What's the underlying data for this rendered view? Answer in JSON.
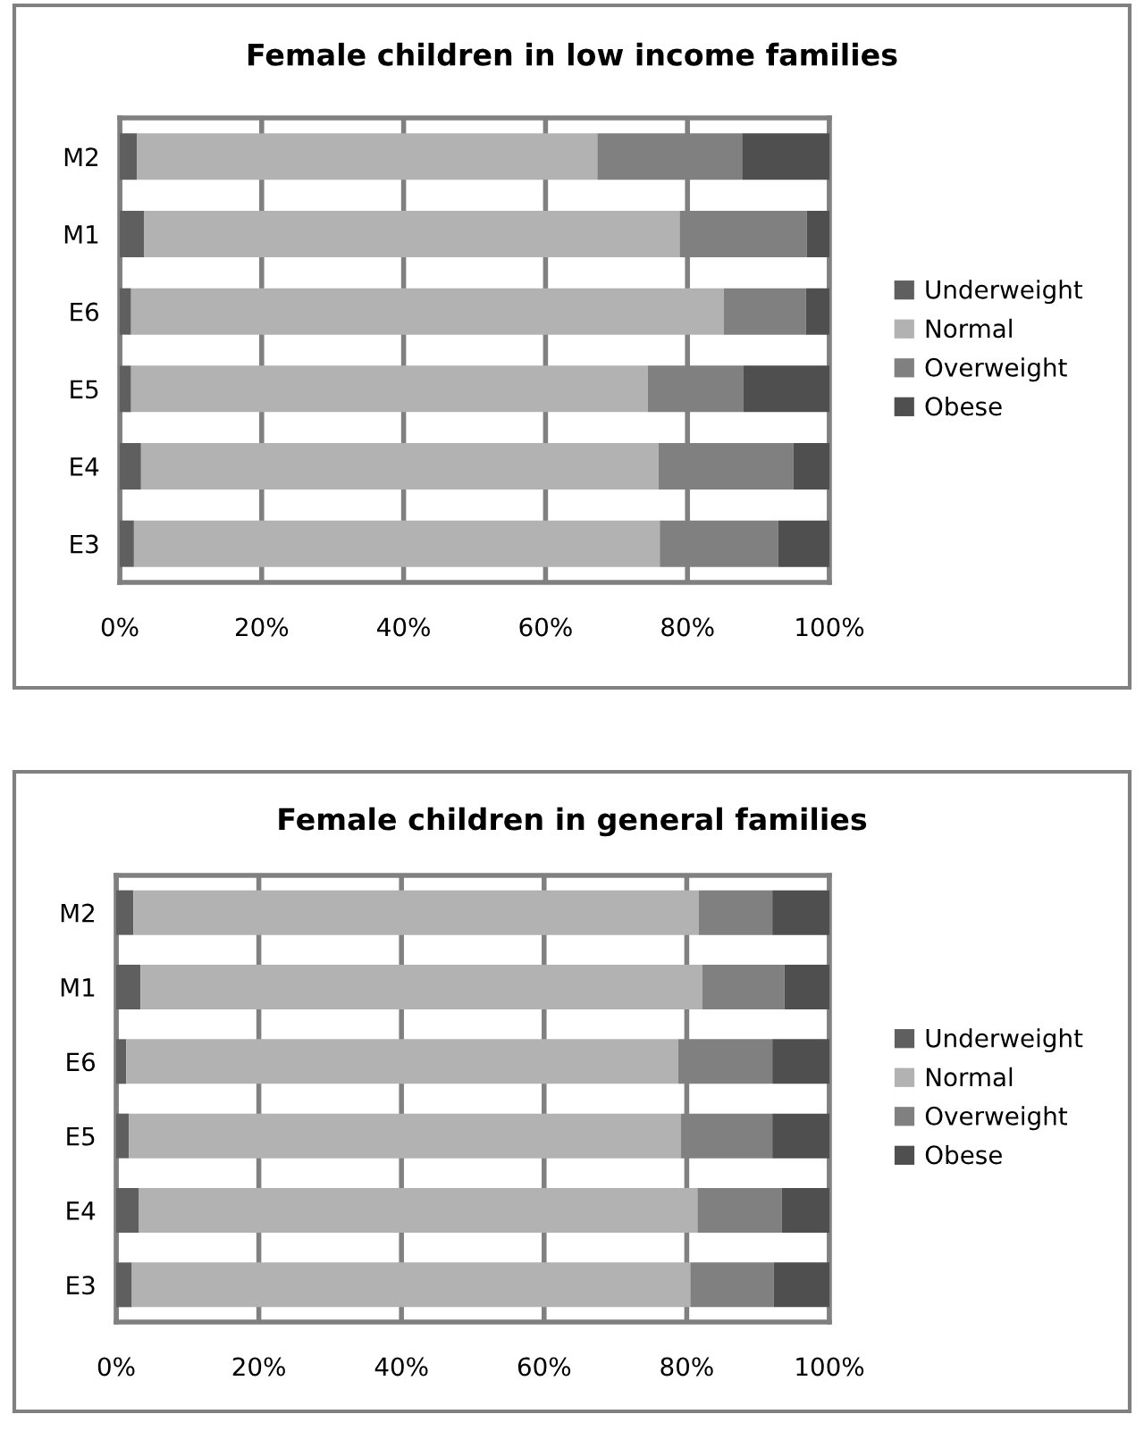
{
  "chart_data": [
    {
      "type": "bar",
      "orientation": "horizontal",
      "stacked": true,
      "title": "Female children in low income families",
      "categories": [
        "M2",
        "M1",
        "E6",
        "E5",
        "E4",
        "E3"
      ],
      "series": [
        {
          "name": "Underweight",
          "color": "#5f5f5f",
          "values": [
            2.4,
            3.4,
            1.6,
            1.6,
            3.0,
            2.0
          ]
        },
        {
          "name": "Normal",
          "color": "#b2b2b2",
          "values": [
            64.9,
            75.5,
            83.5,
            72.8,
            72.9,
            74.1
          ]
        },
        {
          "name": "Overweight",
          "color": "#808080",
          "values": [
            20.4,
            17.9,
            11.6,
            13.5,
            19.0,
            16.7
          ]
        },
        {
          "name": "Obese",
          "color": "#4f4f4f",
          "values": [
            12.3,
            3.2,
            3.3,
            12.1,
            5.1,
            7.2
          ]
        }
      ],
      "xlim": [
        0,
        100
      ],
      "xticks": [
        {
          "value": 0,
          "label": "0%"
        },
        {
          "value": 20,
          "label": "20%"
        },
        {
          "value": 40,
          "label": "40%"
        },
        {
          "value": 60,
          "label": "60%"
        },
        {
          "value": 80,
          "label": "80%"
        },
        {
          "value": 100,
          "label": "100%"
        }
      ],
      "grid": "x",
      "legend": "right"
    },
    {
      "type": "bar",
      "orientation": "horizontal",
      "stacked": true,
      "title": "Female children in general families",
      "categories": [
        "M2",
        "M1",
        "E6",
        "E5",
        "E4",
        "E3"
      ],
      "series": [
        {
          "name": "Underweight",
          "color": "#5f5f5f",
          "values": [
            2.4,
            3.4,
            1.4,
            1.8,
            3.2,
            2.2
          ]
        },
        {
          "name": "Normal",
          "color": "#b2b2b2",
          "values": [
            79.3,
            78.8,
            77.4,
            77.4,
            78.3,
            78.3
          ]
        },
        {
          "name": "Overweight",
          "color": "#808080",
          "values": [
            10.3,
            11.5,
            13.2,
            12.8,
            11.8,
            11.7
          ]
        },
        {
          "name": "Obese",
          "color": "#4f4f4f",
          "values": [
            8.0,
            6.3,
            8.0,
            8.0,
            6.7,
            7.8
          ]
        }
      ],
      "xlim": [
        0,
        100
      ],
      "xticks": [
        {
          "value": 0,
          "label": "0%"
        },
        {
          "value": 20,
          "label": "20%"
        },
        {
          "value": 40,
          "label": "40%"
        },
        {
          "value": 60,
          "label": "60%"
        },
        {
          "value": 80,
          "label": "80%"
        },
        {
          "value": 100,
          "label": "100%"
        }
      ],
      "grid": "x",
      "legend": "right"
    }
  ]
}
